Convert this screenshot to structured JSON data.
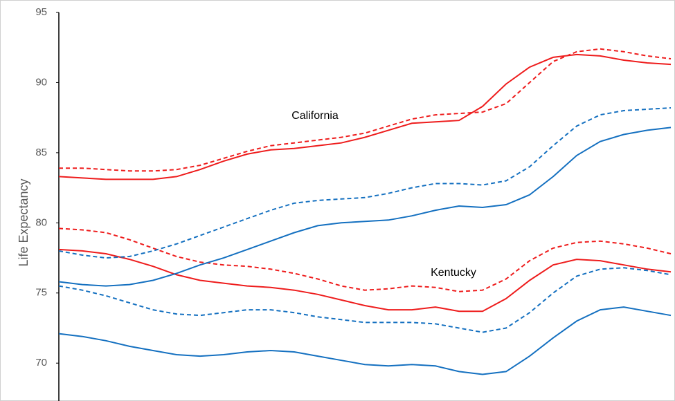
{
  "chart_data": {
    "type": "line",
    "y_label": "Life Expectancy",
    "annotations": [
      "California",
      "Kentucky"
    ],
    "ylim": [
      67.3,
      95
    ],
    "yticks": [
      70,
      75,
      80,
      85,
      90,
      95
    ],
    "grid": false,
    "series": [
      {
        "color": "#ee1c1c",
        "dash": false,
        "values": [
          83.3,
          83.2,
          83.1,
          83.1,
          83.1,
          83.3,
          83.8,
          84.4,
          84.9,
          85.2,
          85.3,
          85.5,
          85.7,
          86.1,
          86.6,
          87.1,
          87.2,
          87.3,
          88.3,
          89.9,
          91.1,
          91.8,
          92.0,
          91.9,
          91.6,
          91.4,
          91.3
        ]
      },
      {
        "color": "#ee1c1c",
        "dash": true,
        "values": [
          83.9,
          83.9,
          83.8,
          83.7,
          83.7,
          83.8,
          84.1,
          84.6,
          85.1,
          85.5,
          85.7,
          85.9,
          86.1,
          86.4,
          86.9,
          87.4,
          87.7,
          87.8,
          87.9,
          88.5,
          90.0,
          91.5,
          92.2,
          92.4,
          92.2,
          91.9,
          91.7
        ]
      },
      {
        "color": "#ee1c1c",
        "dash": false,
        "values": [
          78.1,
          78.0,
          77.8,
          77.4,
          76.9,
          76.3,
          75.9,
          75.7,
          75.5,
          75.4,
          75.2,
          74.9,
          74.5,
          74.1,
          73.8,
          73.8,
          74.0,
          73.7,
          73.7,
          74.6,
          75.9,
          77.0,
          77.4,
          77.3,
          77.0,
          76.7,
          76.5
        ]
      },
      {
        "color": "#ee1c1c",
        "dash": true,
        "values": [
          79.6,
          79.5,
          79.3,
          78.8,
          78.2,
          77.6,
          77.2,
          77.0,
          76.9,
          76.7,
          76.4,
          76.0,
          75.5,
          75.2,
          75.3,
          75.5,
          75.4,
          75.1,
          75.2,
          76.0,
          77.3,
          78.2,
          78.6,
          78.7,
          78.5,
          78.2,
          77.8
        ]
      },
      {
        "color": "#1470c0",
        "dash": false,
        "values": [
          75.8,
          75.6,
          75.5,
          75.6,
          75.9,
          76.4,
          77.0,
          77.5,
          78.1,
          78.7,
          79.3,
          79.8,
          80.0,
          80.1,
          80.2,
          80.5,
          80.9,
          81.2,
          81.1,
          81.3,
          82.0,
          83.3,
          84.8,
          85.8,
          86.3,
          86.6,
          86.8
        ]
      },
      {
        "color": "#1470c0",
        "dash": true,
        "values": [
          78.0,
          77.7,
          77.5,
          77.6,
          78.0,
          78.5,
          79.1,
          79.7,
          80.3,
          80.9,
          81.4,
          81.6,
          81.7,
          81.8,
          82.1,
          82.5,
          82.8,
          82.8,
          82.7,
          83.0,
          84.0,
          85.5,
          86.9,
          87.7,
          88.0,
          88.1,
          88.2
        ]
      },
      {
        "color": "#1470c0",
        "dash": true,
        "values": [
          75.5,
          75.2,
          74.8,
          74.3,
          73.8,
          73.5,
          73.4,
          73.6,
          73.8,
          73.8,
          73.6,
          73.3,
          73.1,
          72.9,
          72.9,
          72.9,
          72.8,
          72.5,
          72.2,
          72.5,
          73.6,
          75.0,
          76.2,
          76.7,
          76.8,
          76.6,
          76.3
        ]
      },
      {
        "color": "#1470c0",
        "dash": false,
        "values": [
          72.1,
          71.9,
          71.6,
          71.2,
          70.9,
          70.6,
          70.5,
          70.6,
          70.8,
          70.9,
          70.8,
          70.5,
          70.2,
          69.9,
          69.8,
          69.9,
          69.8,
          69.4,
          69.2,
          69.4,
          70.5,
          71.8,
          73.0,
          73.8,
          74.0,
          73.7,
          73.4
        ]
      }
    ]
  }
}
